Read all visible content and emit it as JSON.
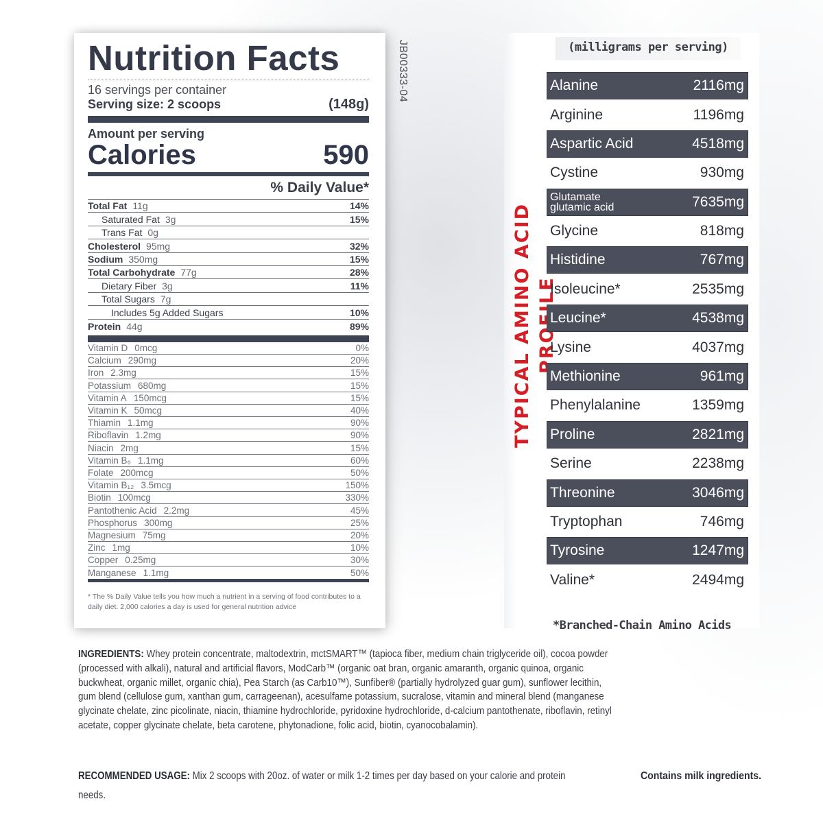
{
  "nutrition_facts": {
    "title": "Nutrition Facts",
    "servings_per_container": "16 servings per container",
    "serving_size_label": "Serving size: 2 scoops",
    "serving_size_weight": "(148g)",
    "amount_per_serving": "Amount per serving",
    "calories_label": "Calories",
    "calories_value": "590",
    "daily_value_header": "% Daily Value*",
    "macros": [
      {
        "name": "Total Fat",
        "amount": "11g",
        "dv": "14%",
        "bold": true,
        "indent": 0
      },
      {
        "name": "Saturated Fat",
        "amount": "3g",
        "dv": "15%",
        "bold": false,
        "indent": 1
      },
      {
        "name": "Trans Fat",
        "amount": "0g",
        "dv": "",
        "bold": false,
        "indent": 1
      },
      {
        "name": "Cholesterol",
        "amount": "95mg",
        "dv": "32%",
        "bold": true,
        "indent": 0
      },
      {
        "name": "Sodium",
        "amount": "350mg",
        "dv": "15%",
        "bold": true,
        "indent": 0
      },
      {
        "name": "Total Carbohydrate",
        "amount": "77g",
        "dv": "28%",
        "bold": true,
        "indent": 0
      },
      {
        "name": "Dietary Fiber",
        "amount": "3g",
        "dv": "11%",
        "bold": false,
        "indent": 1
      },
      {
        "name": "Total Sugars",
        "amount": "7g",
        "dv": "",
        "bold": false,
        "indent": 1
      },
      {
        "name": "Includes 5g Added Sugars",
        "amount": "",
        "dv": "10%",
        "bold": false,
        "indent": 2
      },
      {
        "name": "Protein",
        "amount": "44g",
        "dv": "89%",
        "bold": true,
        "indent": 0
      }
    ],
    "vitamins": [
      {
        "name": "Vitamin D",
        "amount": "0mcg",
        "dv": "0%"
      },
      {
        "name": "Calcium",
        "amount": "290mg",
        "dv": "20%"
      },
      {
        "name": "Iron",
        "amount": "2.3mg",
        "dv": "15%"
      },
      {
        "name": "Potassium",
        "amount": "680mg",
        "dv": "15%"
      },
      {
        "name": "Vitamin A",
        "amount": "150mcg",
        "dv": "15%"
      },
      {
        "name": "Vitamin K",
        "amount": "50mcg",
        "dv": "40%"
      },
      {
        "name": "Thiamin",
        "amount": "1.1mg",
        "dv": "90%"
      },
      {
        "name": "Riboflavin",
        "amount": "1.2mg",
        "dv": "90%"
      },
      {
        "name": "Niacin",
        "amount": "2mg",
        "dv": "15%"
      },
      {
        "name": "Vitamin B₆",
        "amount": "1.1mg",
        "dv": "60%"
      },
      {
        "name": "Folate",
        "amount": "200mcg",
        "dv": "50%"
      },
      {
        "name": "Vitamin B₁₂",
        "amount": "3.5mcg",
        "dv": "150%"
      },
      {
        "name": "Biotin",
        "amount": "100mcg",
        "dv": "330%"
      },
      {
        "name": "Pantothenic Acid",
        "amount": "2.2mg",
        "dv": "45%"
      },
      {
        "name": "Phosphorus",
        "amount": "300mg",
        "dv": "25%"
      },
      {
        "name": "Magnesium",
        "amount": "75mg",
        "dv": "20%"
      },
      {
        "name": "Zinc",
        "amount": "1mg",
        "dv": "10%"
      },
      {
        "name": "Copper",
        "amount": "0.25mg",
        "dv": "30%"
      },
      {
        "name": "Manganese",
        "amount": "1.1mg",
        "dv": "50%"
      }
    ],
    "footnote": "* The % Daily Value tells you how much a nutrient in a serving of food contributes to a daily diet. 2,000 calories a day is used for general nutrition advice",
    "lot_code": "JB00333-04"
  },
  "amino_profile": {
    "side_title": "TYPICAL AMINO ACID PROFILE",
    "unit_header": "(milligrams per serving)",
    "rows": [
      {
        "name": "Alanine",
        "value": "2116mg",
        "dark": true
      },
      {
        "name": "Arginine",
        "value": "1196mg",
        "dark": false
      },
      {
        "name": "Aspartic Acid",
        "value": "4518mg",
        "dark": true
      },
      {
        "name": "Cystine",
        "value": "930mg",
        "dark": false
      },
      {
        "name": "Glutamate glutamic acid",
        "value": "7635mg",
        "dark": true
      },
      {
        "name": "Glycine",
        "value": "818mg",
        "dark": false
      },
      {
        "name": "Histidine",
        "value": "767mg",
        "dark": true
      },
      {
        "name": "Isoleucine*",
        "value": "2535mg",
        "dark": false
      },
      {
        "name": "Leucine*",
        "value": "4538mg",
        "dark": true
      },
      {
        "name": "Lysine",
        "value": "4037mg",
        "dark": false
      },
      {
        "name": "Methionine",
        "value": "961mg",
        "dark": true
      },
      {
        "name": "Phenylalanine",
        "value": "1359mg",
        "dark": false
      },
      {
        "name": "Proline",
        "value": "2821mg",
        "dark": true
      },
      {
        "name": "Serine",
        "value": "2238mg",
        "dark": false
      },
      {
        "name": "Threonine",
        "value": "3046mg",
        "dark": true
      },
      {
        "name": "Tryptophan",
        "value": "746mg",
        "dark": false
      },
      {
        "name": "Tyrosine",
        "value": "1247mg",
        "dark": true
      },
      {
        "name": "Valine*",
        "value": "2494mg",
        "dark": false
      }
    ],
    "glutamate_line1": "Glutamate",
    "glutamate_line2": "glutamic acid",
    "footnote": "*Branched-Chain Amino Acids"
  },
  "ingredients": {
    "label": "INGREDIENTS:",
    "text": "Whey protein concentrate, maltodextrin, mctSMART™ (tapioca fiber, medium chain triglyceride oil), cocoa powder (processed with alkali), natural and artificial flavors, ModCarb™ (organic oat bran, organic amaranth, organic quinoa, organic buckwheat, organic millet, organic chia), Pea Starch (as Carb10™), Sunfiber® (partially hydrolyzed guar gum), sunflower lecithin, gum blend (cellulose gum, xanthan gum, carrageenan), acesulfame potassium, sucralose, vitamin and mineral blend (manganese glycinate chelate, zinc picolinate, niacin, thiamine hydrochloride, pyridoxine hydrochloride, d-calcium pantothenate, riboflavin, retinyl acetate, copper glycinate chelate, beta carotene, phytonadione, folic acid, biotin, cyanocobalamin)."
  },
  "usage": {
    "label": "RECOMMENDED USAGE:",
    "text": "Mix 2 scoops with 20oz. of water or milk 1-2 times per day based on your calorie and protein needs."
  },
  "allergen": "Contains milk ingredients.",
  "colors": {
    "label_dark": "#3d4555",
    "row_dark": "#4b4f5b",
    "accent_red": "#d41f26"
  }
}
